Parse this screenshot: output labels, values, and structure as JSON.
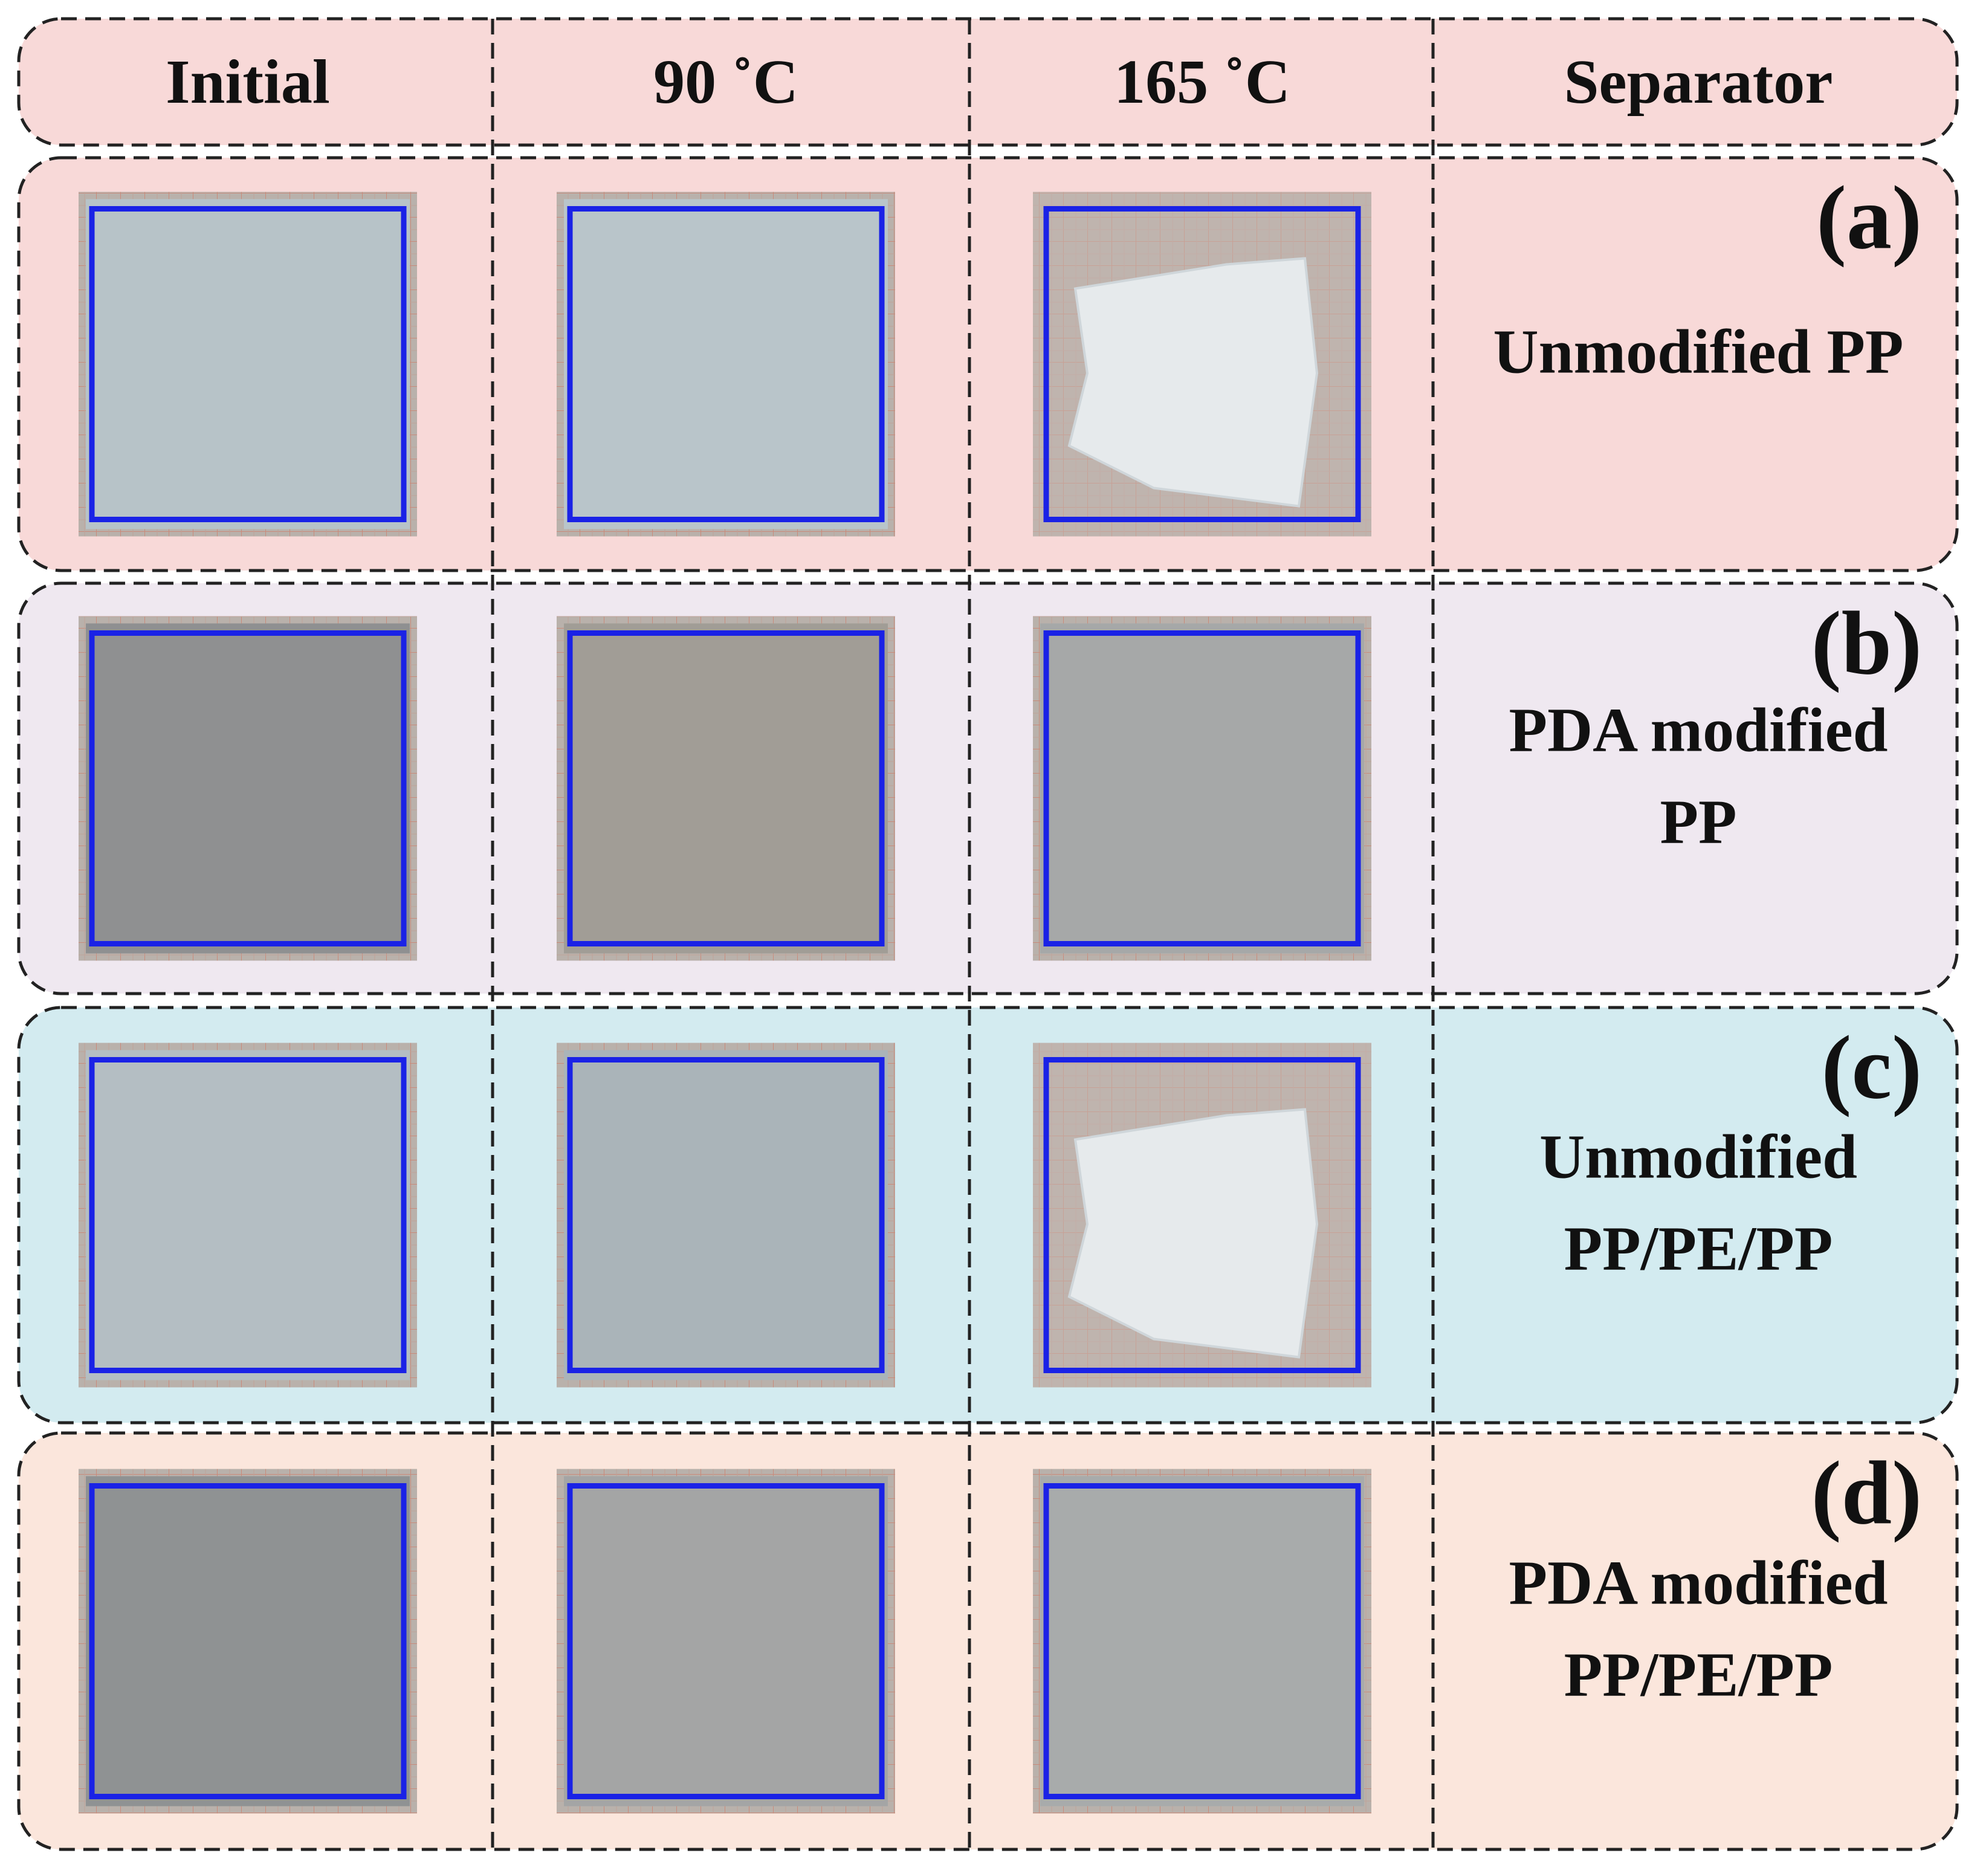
{
  "header": {
    "columns": [
      "Initial",
      "90 ˚C",
      "165 ˚C",
      "Separator"
    ]
  },
  "rows": [
    {
      "label": "(a)",
      "name": [
        "Unmodified PP"
      ]
    },
    {
      "label": "(b)",
      "name": [
        "PDA modified",
        "PP"
      ]
    },
    {
      "label": "(c)",
      "name": [
        "Unmodified",
        "PP/PE/PP"
      ]
    },
    {
      "label": "(d)",
      "name": [
        "PDA modified",
        "PP/PE/PP"
      ]
    }
  ]
}
